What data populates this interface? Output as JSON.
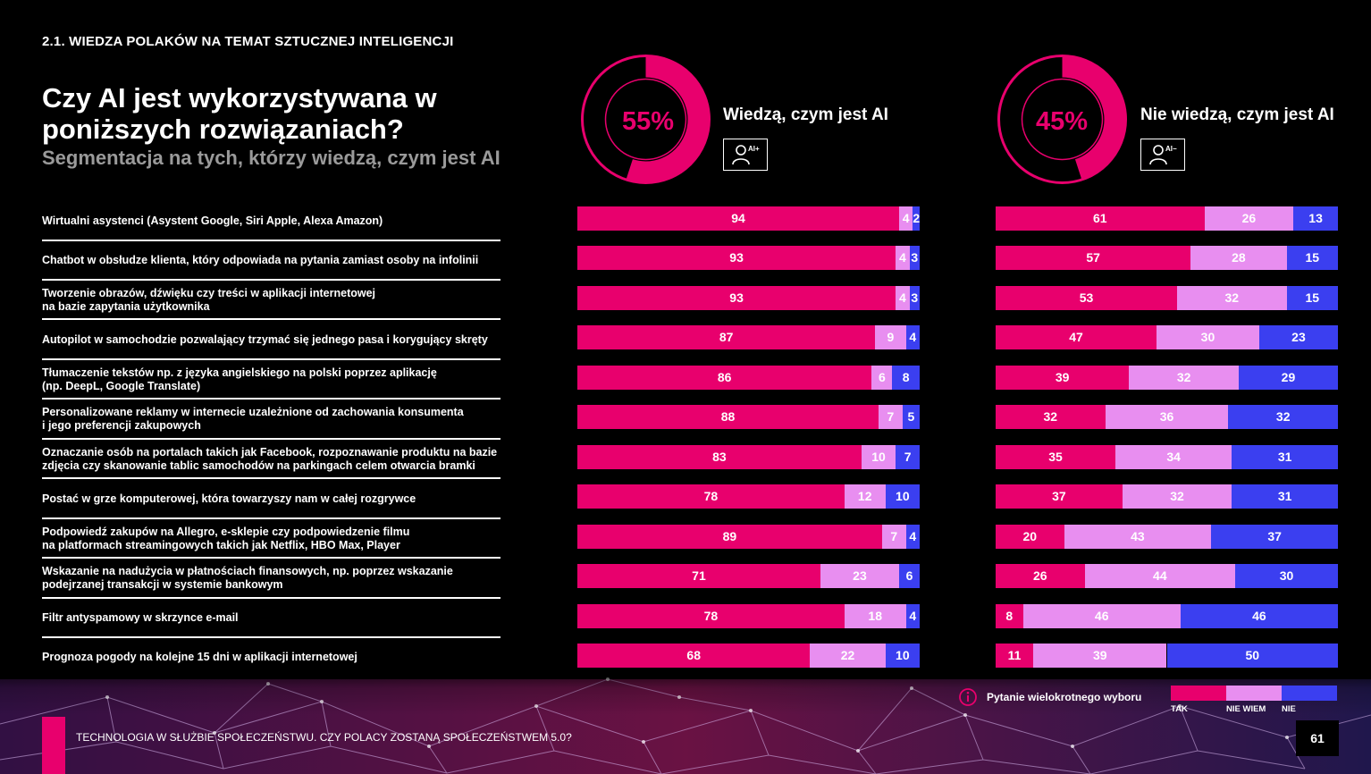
{
  "section_title": "2.1.   WIEDZA POLAKÓW NA TEMAT SZTUCZNEJ INTELIGENCJI",
  "headline": "Czy AI jest wykorzystywana w poniższych rozwiązaniach?",
  "subheadline": "Segmentacja na tych, którzy wiedzą, czym jest AI",
  "colors": {
    "tak": "#e8006d",
    "nie_wiem": "#e88ef0",
    "nie": "#3b3ff0",
    "ring_bg": "#000000"
  },
  "segments": [
    {
      "percent_label": "55%",
      "share": 55,
      "label": "Wiedzą, czym jest AI",
      "badge": "AI+"
    },
    {
      "percent_label": "45%",
      "share": 45,
      "label": "Nie wiedzą, czym jest AI",
      "badge": "AI−"
    }
  ],
  "legend": {
    "note": "Pytanie wielokrotnego wyboru",
    "info_icon": "info-icon",
    "keys": [
      "TAK",
      "NIE WIEM",
      "NIE"
    ]
  },
  "chart_data": [
    {
      "type": "bar",
      "stacked": true,
      "orientation": "horizontal",
      "title": "Wiedzą, czym jest AI",
      "categories": [
        "Wirtualni asystenci (Asystent Google, Siri Apple, Alexa Amazon)",
        "Chatbot w obsłudze klienta, który odpowiada na pytania zamiast osoby na infolinii",
        "Tworzenie obrazów, dźwięku czy treści w aplikacji internetowej na bazie zapytania użytkownika",
        "Autopilot w samochodzie pozwalający trzymać się jednego pasa i korygujący skręty",
        "Tłumaczenie tekstów np. z języka angielskiego na polski poprzez aplikację (np. DeepL, Google Translate)",
        "Personalizowane reklamy w internecie uzależnione od zachowania konsumenta i jego preferencji zakupowych",
        "Oznaczanie osób na portalach takich jak Facebook, rozpoznawanie produktu na bazie zdjęcia czy skanowanie tablic samochodów na parkingach celem otwarcia bramki",
        "Postać w grze komputerowej, która towarzyszy nam w całej rozgrywce",
        "Podpowiedź zakupów na Allegro, e-sklepie czy podpowiedzenie filmu na platformach streamingowych takich jak Netflix, HBO Max, Player",
        "Wskazanie na nadużycia w płatnościach finansowych, np. poprzez wskazanie podejrzanej transakcji w systemie bankowym",
        "Filtr antyspamowy w skrzynce e-mail",
        "Prognoza pogody na kolejne 15 dni w aplikacji internetowej"
      ],
      "series": [
        {
          "name": "TAK",
          "values": [
            94,
            93,
            93,
            87,
            86,
            88,
            83,
            78,
            89,
            71,
            78,
            68
          ]
        },
        {
          "name": "NIE WIEM",
          "values": [
            4,
            4,
            4,
            9,
            6,
            7,
            10,
            12,
            7,
            23,
            18,
            22
          ]
        },
        {
          "name": "NIE",
          "values": [
            2,
            3,
            3,
            4,
            8,
            5,
            7,
            10,
            4,
            6,
            4,
            10
          ]
        }
      ],
      "xlim": [
        0,
        100
      ]
    },
    {
      "type": "bar",
      "stacked": true,
      "orientation": "horizontal",
      "title": "Nie wiedzą, czym jest AI",
      "series": [
        {
          "name": "TAK",
          "values": [
            61,
            57,
            53,
            47,
            39,
            32,
            35,
            37,
            20,
            26,
            8,
            11
          ]
        },
        {
          "name": "NIE WIEM",
          "values": [
            26,
            28,
            32,
            30,
            32,
            36,
            34,
            32,
            43,
            44,
            46,
            39
          ]
        },
        {
          "name": "NIE",
          "values": [
            13,
            15,
            15,
            23,
            29,
            32,
            31,
            31,
            37,
            30,
            46,
            50
          ]
        }
      ],
      "xlim": [
        0,
        100
      ]
    }
  ],
  "row_labels": [
    "Wirtualni asystenci (Asystent Google, Siri Apple, Alexa Amazon)",
    "Chatbot w obsłudze klienta, który odpowiada na pytania zamiast osoby na infolinii",
    "Tworzenie obrazów, dźwięku czy treści w aplikacji internetowej\nna bazie zapytania użytkownika",
    "Autopilot w samochodzie pozwalający trzymać się jednego pasa i korygujący skręty",
    "Tłumaczenie tekstów np. z języka angielskiego na polski poprzez aplikację\n(np. DeepL, Google Translate)",
    "Personalizowane reklamy w internecie uzależnione od zachowania konsumenta\ni jego preferencji zakupowych",
    "Oznaczanie osób na portalach takich jak Facebook, rozpoznawanie produktu na bazie\nzdjęcia czy skanowanie tablic samochodów na parkingach celem otwarcia bramki",
    "Postać w grze komputerowej, która towarzyszy nam w całej rozgrywce",
    "Podpowiedź zakupów na Allegro, e-sklepie czy podpowiedzenie filmu\nna platformach streamingowych takich jak Netflix, HBO Max, Player",
    "Wskazanie na nadużycia w płatnościach finansowych, np. poprzez wskazanie\npodejrzanej transakcji w systemie bankowym",
    "Filtr antyspamowy w skrzynce e-mail",
    "Prognoza pogody na kolejne 15 dni w aplikacji internetowej"
  ],
  "footer": {
    "text": "TECHNOLOGIA W SŁUŻBIE SPOŁECZEŃSTWU. CZY POLACY ZOSTANĄ SPOŁECZEŃSTWEM 5.0?",
    "page_number": "61"
  }
}
